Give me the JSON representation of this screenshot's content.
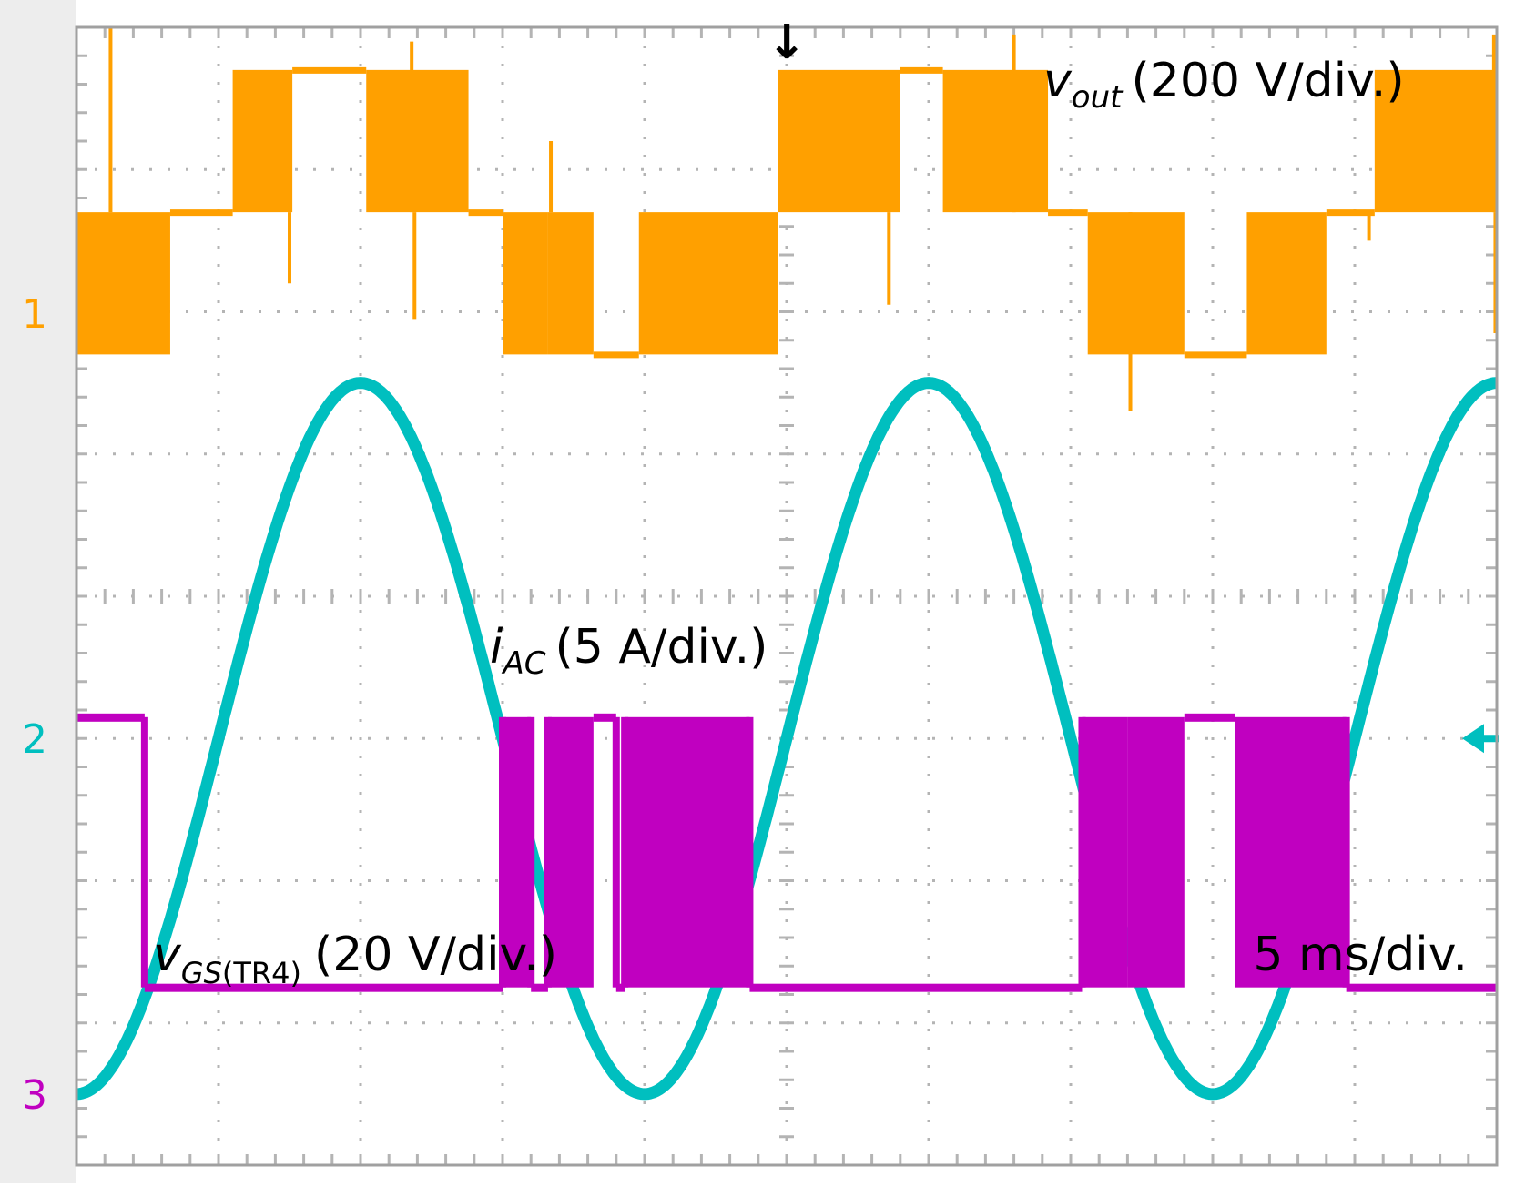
{
  "chart_data": {
    "type": "line",
    "title": "",
    "time_base": "5 ms/div.",
    "grid": true,
    "x_divisions": 10,
    "y_divisions": 8,
    "xlim_ms": [
      0,
      50
    ],
    "trigger_marker": "↓",
    "colors": {
      "ch1": "#ffa000",
      "ch2": "#00bfbf",
      "ch3": "#c000c0",
      "grid": "#b4b4b4",
      "frame": "#a0a0a0"
    },
    "series": [
      {
        "name": "v_out",
        "channel_marker": "1",
        "label_main": "v",
        "label_sub": "out",
        "label_scale": "(200 V/div.)",
        "units": "V",
        "scale_per_div": 200,
        "ground_div": 6.7,
        "segments": [
          {
            "t0": 0.0,
            "t1": 3.3,
            "level": -1,
            "chop": true
          },
          {
            "t0": 3.3,
            "t1": 5.5,
            "level": 0
          },
          {
            "t0": 5.5,
            "t1": 7.6,
            "level": 1,
            "chop": true
          },
          {
            "t0": 7.6,
            "t1": 10.2,
            "level": 1
          },
          {
            "t0": 10.2,
            "t1": 13.8,
            "level": 1,
            "chop": true
          },
          {
            "t0": 13.8,
            "t1": 15.0,
            "level": 0
          },
          {
            "t0": 15.0,
            "t1": 16.6,
            "level": -1,
            "chop": true
          },
          {
            "t0": 16.6,
            "t1": 18.2,
            "level": -1,
            "chop": true
          },
          {
            "t0": 18.2,
            "t1": 19.8,
            "level": -1
          },
          {
            "t0": 19.8,
            "t1": 24.7,
            "level": -1,
            "chop": true
          },
          {
            "t0": 24.7,
            "t1": 29.0,
            "level": 1,
            "chop": true
          },
          {
            "t0": 29.0,
            "t1": 30.5,
            "level": 1
          },
          {
            "t0": 30.5,
            "t1": 34.2,
            "level": 1,
            "chop": true
          },
          {
            "t0": 34.2,
            "t1": 35.6,
            "level": 0
          },
          {
            "t0": 35.6,
            "t1": 39.0,
            "level": -1,
            "chop": true
          },
          {
            "t0": 39.0,
            "t1": 41.2,
            "level": -1
          },
          {
            "t0": 41.2,
            "t1": 44.0,
            "level": -1,
            "chop": true
          },
          {
            "t0": 44.0,
            "t1": 45.7,
            "level": 0
          },
          {
            "t0": 45.7,
            "t1": 50.0,
            "level": 1,
            "chop": true
          }
        ],
        "spikes": [
          {
            "t": 1.2,
            "v": 1.3
          },
          {
            "t": 7.5,
            "v": -0.5
          },
          {
            "t": 11.8,
            "v": 1.2
          },
          {
            "t": 11.9,
            "v": -0.75
          },
          {
            "t": 16.7,
            "v": 0.5
          },
          {
            "t": 28.6,
            "v": -0.65
          },
          {
            "t": 33.0,
            "v": 1.25
          },
          {
            "t": 37.1,
            "v": -1.4
          },
          {
            "t": 45.5,
            "v": -0.2
          },
          {
            "t": 49.9,
            "v": 1.25
          },
          {
            "t": 49.95,
            "v": -0.85
          }
        ]
      },
      {
        "name": "i_AC",
        "channel_marker": "2",
        "label_main": "i",
        "label_sub": "AC",
        "label_scale": "(5 A/div.)",
        "units": "A",
        "scale_per_div": 5,
        "ground_div": 3.0,
        "amplitude_div": 2.5,
        "period_ms": 20,
        "zero_cross_ms": 25.0
      },
      {
        "name": "v_GS(TR4)",
        "channel_marker": "3",
        "label_main": "v",
        "label_sub": "GS",
        "label_sub2": "(TR4)",
        "label_scale": "(20 V/div.)",
        "units": "V",
        "scale_per_div": 20,
        "ground_div": 1.25,
        "high_div": 3.15,
        "segments": [
          {
            "t0": 0.0,
            "t1": 2.4,
            "level": 1
          },
          {
            "t0": 2.4,
            "t1": 15.0,
            "level": 0
          },
          {
            "t0": 15.0,
            "t1": 16.0,
            "level": 1,
            "chop": true
          },
          {
            "t0": 16.0,
            "t1": 16.6,
            "level": 0
          },
          {
            "t0": 16.6,
            "t1": 18.2,
            "level": 1,
            "chop": true
          },
          {
            "t0": 18.2,
            "t1": 19.0,
            "level": 1
          },
          {
            "t0": 19.0,
            "t1": 19.3,
            "level": 0
          },
          {
            "t0": 19.3,
            "t1": 23.7,
            "level": 1,
            "chop": true
          },
          {
            "t0": 23.7,
            "t1": 35.4,
            "level": 0
          },
          {
            "t0": 35.4,
            "t1": 37.0,
            "level": 1,
            "chop": true
          },
          {
            "t0": 37.0,
            "t1": 39.0,
            "level": 1,
            "chop": true
          },
          {
            "t0": 39.0,
            "t1": 40.8,
            "level": 1
          },
          {
            "t0": 40.8,
            "t1": 44.7,
            "level": 1,
            "chop": true
          },
          {
            "t0": 44.7,
            "t1": 50.0,
            "level": 0
          }
        ]
      }
    ]
  }
}
